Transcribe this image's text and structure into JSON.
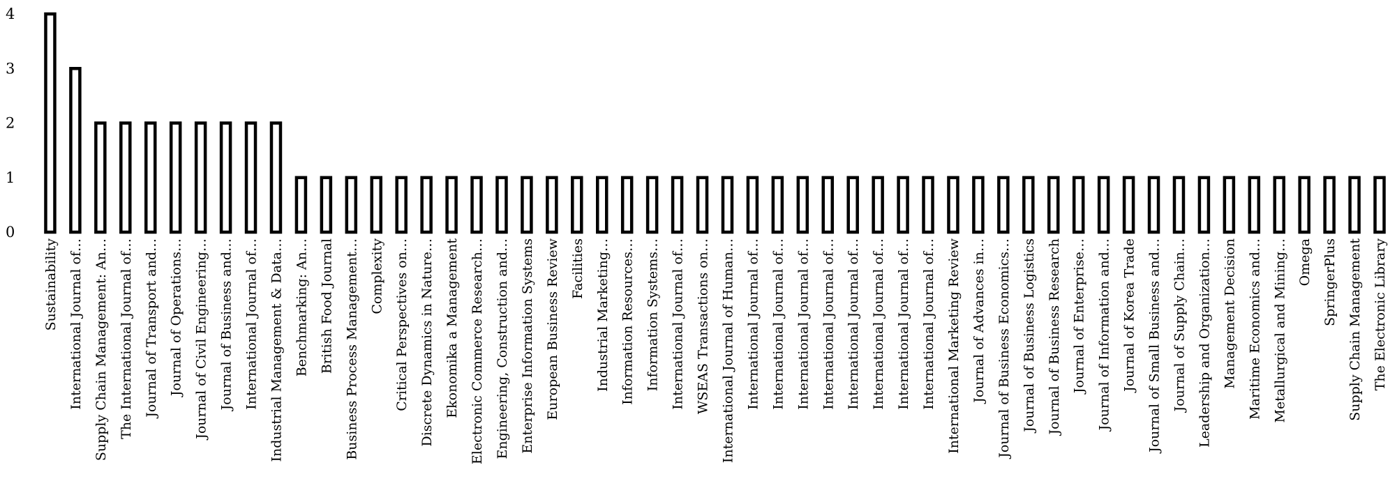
{
  "chart_data": {
    "type": "bar",
    "title": "",
    "xlabel": "",
    "ylabel": "",
    "ylim": [
      0,
      4
    ],
    "yticks": [
      0,
      1,
      2,
      3,
      4
    ],
    "grid": false,
    "legend": "none",
    "bar_fill": "#ffffff",
    "bar_stroke": "#000000",
    "categories": [
      "Sustainability",
      "International Journal of…",
      "Supply Chain Management: An…",
      "The International Journal of…",
      "Journal of Transport and…",
      "Journal of Operations…",
      "Journal of Civil Engineering…",
      "Journal of Business and…",
      "International Journal of…",
      "Industrial Management & Data…",
      "Benchmarking: An…",
      "British Food Journal",
      "Business Process Management…",
      "Complexity",
      "Critical Perspectives on…",
      "Discrete Dynamics in Nature…",
      "Ekonomika a Management",
      "Electronic Commerce Research…",
      "Engineering, Construction and…",
      "Enterprise Information Systems",
      "European Business Review",
      "Facilities",
      "Industrial Marketing…",
      "Information Resources…",
      "Information Systems…",
      "International Journal of…",
      "WSEAS Transactions on…",
      "International Journal of Human…",
      "International Journal of…",
      "International Journal of…",
      "International Journal of…",
      "International Journal of…",
      "International Journal of…",
      "International Journal of…",
      "International Journal of…",
      "International Journal of…",
      "International Marketing Review",
      "Journal of Advances in…",
      "Journal of Business Economics…",
      "Journal of Business Logistics",
      "Journal of Business Research",
      "Journal of Enterprise…",
      "Journal of Information and…",
      "Journal of Korea Trade",
      "Journal of Small Business and…",
      "Journal of Supply Chain…",
      "Leadership and Organization…",
      "Management Decision",
      "Maritime Economics and…",
      "Metallurgical and Mining…",
      "Omega",
      "SpringerPlus",
      "Supply Chain Management",
      "The Electronic Library"
    ],
    "values": [
      4,
      3,
      2,
      2,
      2,
      2,
      2,
      2,
      2,
      2,
      1,
      1,
      1,
      1,
      1,
      1,
      1,
      1,
      1,
      1,
      1,
      1,
      1,
      1,
      1,
      1,
      1,
      1,
      1,
      1,
      1,
      1,
      1,
      1,
      1,
      1,
      1,
      1,
      1,
      1,
      1,
      1,
      1,
      1,
      1,
      1,
      1,
      1,
      1,
      1,
      1,
      1,
      1,
      1
    ]
  }
}
